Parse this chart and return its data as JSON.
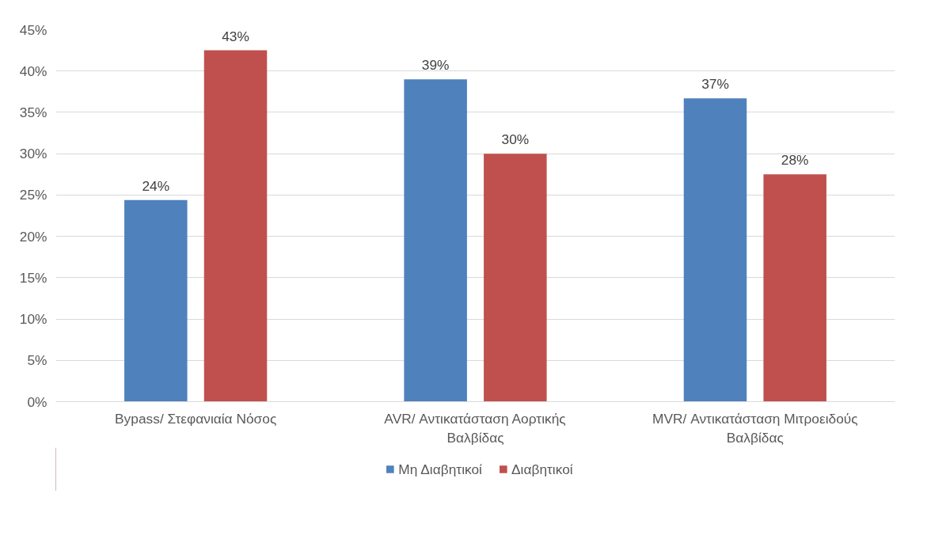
{
  "chart_data": {
    "type": "bar",
    "categories": [
      "Bypass/ Στεφανιαία Νόσος",
      "AVR/ Αντικατάσταση Αορτικής Βαλβίδας",
      "MVR/ Αντικατάσταση Μιτροειδούς Βαλβίδας"
    ],
    "series": [
      {
        "name": "Μη Διαβητικοί",
        "color": "#4f81bd",
        "values": [
          24.4,
          39.0,
          36.7
        ],
        "value_labels": [
          "24%",
          "39%",
          "37%"
        ]
      },
      {
        "name": "Διαβητικοί",
        "color": "#c0504d",
        "values": [
          42.5,
          30.0,
          27.5
        ],
        "value_labels": [
          "43%",
          "30%",
          "28%"
        ]
      }
    ],
    "ylim": [
      0,
      45
    ],
    "yticks": [
      {
        "value": 0,
        "label": "0%"
      },
      {
        "value": 5,
        "label": "5%"
      },
      {
        "value": 10,
        "label": "10%"
      },
      {
        "value": 15,
        "label": "15%"
      },
      {
        "value": 20,
        "label": "20%"
      },
      {
        "value": 25,
        "label": "25%"
      },
      {
        "value": 30,
        "label": "30%"
      },
      {
        "value": 35,
        "label": "35%"
      },
      {
        "value": 40,
        "label": "40%"
      },
      {
        "value": 45,
        "label": "45%"
      }
    ],
    "grid": "y",
    "legend": "bottom"
  }
}
